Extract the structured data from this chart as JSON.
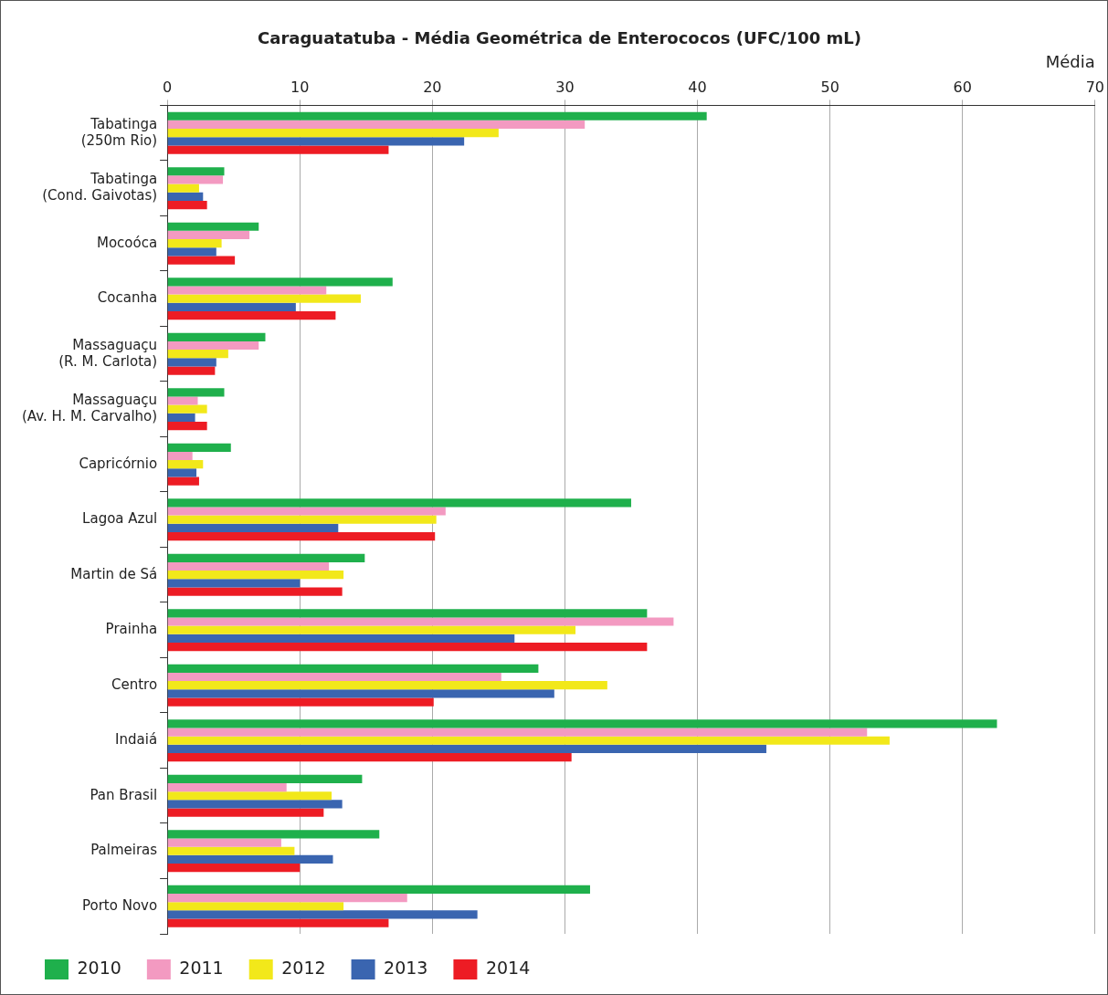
{
  "chart_data": {
    "type": "bar",
    "orientation": "horizontal",
    "title": "Caraguatatuba - Média Geométrica de Enterococos (UFC/100 mL)",
    "xlabel": "Média",
    "categories": [
      "Tabatinga\n(250m Rio)",
      "Tabatinga\n(Cond. Gaivotas)",
      "Mocoóca",
      "Cocanha",
      "Massaguaçu\n(R. M. Carlota)",
      "Massaguaçu\n(Av. H. M. Carvalho)",
      "Capricórnio",
      "Lagoa Azul",
      "Martin de Sá",
      "Prainha",
      "Centro",
      "Indaiá",
      "Pan Brasil",
      "Palmeiras",
      "Porto Novo"
    ],
    "series": [
      {
        "name": "2010",
        "color": "#1fb04c",
        "values": [
          40.7,
          4.3,
          6.9,
          17.0,
          7.4,
          4.3,
          4.8,
          35.0,
          14.9,
          36.2,
          28.0,
          62.6,
          14.7,
          16.0,
          31.9
        ]
      },
      {
        "name": "2011",
        "color": "#f39ac1",
        "values": [
          31.5,
          4.2,
          6.2,
          12.0,
          6.9,
          2.3,
          1.9,
          21.0,
          12.2,
          38.2,
          25.2,
          52.8,
          9.0,
          8.6,
          18.1
        ]
      },
      {
        "name": "2012",
        "color": "#f2e81a",
        "values": [
          25.0,
          2.4,
          4.1,
          14.6,
          4.6,
          3.0,
          2.7,
          20.3,
          13.3,
          30.8,
          33.2,
          54.5,
          12.4,
          9.6,
          13.3
        ]
      },
      {
        "name": "2013",
        "color": "#3a65b0",
        "values": [
          22.4,
          2.7,
          3.7,
          9.7,
          3.7,
          2.1,
          2.2,
          12.9,
          10.0,
          26.2,
          29.2,
          45.2,
          13.2,
          12.5,
          23.4
        ]
      },
      {
        "name": "2014",
        "color": "#ed1c24",
        "values": [
          16.7,
          3.0,
          5.1,
          12.7,
          3.6,
          3.0,
          2.4,
          20.2,
          13.2,
          36.2,
          20.1,
          30.5,
          11.8,
          10.0,
          16.7
        ]
      }
    ],
    "xlim": [
      0,
      70
    ],
    "xticks": [
      0,
      10,
      20,
      30,
      40,
      50,
      60,
      70
    ],
    "grid": "x",
    "legend": "bottom"
  }
}
